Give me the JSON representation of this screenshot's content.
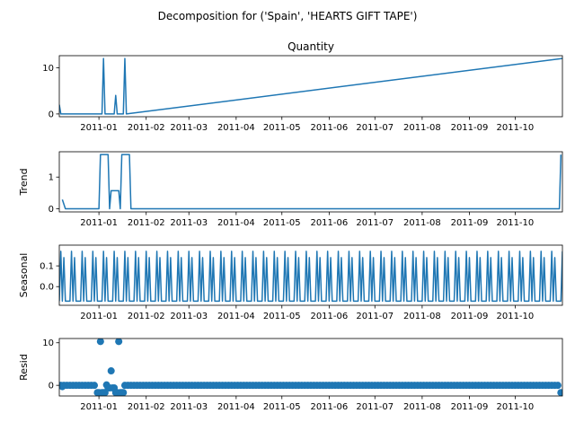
{
  "figure": {
    "suptitle": "Decomposition for ('Spain', 'HEARTS GIFT TAPE')"
  },
  "colors": {
    "line": "#1f77b4",
    "axis": "#000000",
    "background": "#ffffff"
  },
  "chart_data": [
    {
      "type": "line",
      "title": "Quantity",
      "ylabel": "",
      "ylim": [
        -0.6,
        12.6
      ],
      "yticks": [
        0,
        10
      ],
      "yticklabels": [
        "0",
        "10"
      ],
      "xlim": [
        "2010-12-06",
        "2011-11-01"
      ],
      "xticks": [
        "2011-01-01",
        "2011-02-01",
        "2011-03-01",
        "2011-04-01",
        "2011-05-01",
        "2011-06-01",
        "2011-07-01",
        "2011-08-01",
        "2011-09-01",
        "2011-10-01"
      ],
      "xticklabels": [
        "2011-01",
        "2011-02",
        "2011-03",
        "2011-04",
        "2011-05",
        "2011-06",
        "2011-07",
        "2011-08",
        "2011-09",
        "2011-10"
      ],
      "x": [
        "2010-12-06",
        "2010-12-07",
        "2011-01-03",
        "2011-01-04",
        "2011-01-05",
        "2011-01-11",
        "2011-01-12",
        "2011-01-13",
        "2011-01-17",
        "2011-01-18",
        "2011-01-19",
        "2011-11-01"
      ],
      "values": [
        2,
        0,
        0,
        12,
        0,
        0,
        4,
        0,
        0,
        12,
        0,
        12
      ]
    },
    {
      "type": "line",
      "title": "",
      "ylabel": "Trend",
      "ylim": [
        -0.1,
        1.8
      ],
      "yticks": [
        0,
        1
      ],
      "yticklabels": [
        "0",
        "1"
      ],
      "xlim": [
        "2010-12-06",
        "2011-11-01"
      ],
      "xticks": [
        "2011-01-01",
        "2011-02-01",
        "2011-03-01",
        "2011-04-01",
        "2011-05-01",
        "2011-06-01",
        "2011-07-01",
        "2011-08-01",
        "2011-09-01",
        "2011-10-01"
      ],
      "xticklabels": [
        "2011-01",
        "2011-02",
        "2011-03",
        "2011-04",
        "2011-05",
        "2011-06",
        "2011-07",
        "2011-08",
        "2011-09",
        "2011-10"
      ],
      "x": [
        "2010-12-08",
        "2010-12-10",
        "2011-01-01",
        "2011-01-02",
        "2011-01-07",
        "2011-01-08",
        "2011-01-09",
        "2011-01-14",
        "2011-01-15",
        "2011-01-16",
        "2011-01-21",
        "2011-01-22",
        "2011-10-30",
        "2011-10-31"
      ],
      "values": [
        0.29,
        0,
        0,
        1.71,
        1.71,
        0,
        0.57,
        0.57,
        0,
        1.71,
        1.71,
        0,
        0,
        1.71
      ]
    },
    {
      "type": "line",
      "title": "",
      "ylabel": "Seasonal",
      "ylim": [
        -0.09,
        0.2
      ],
      "yticks": [
        0.0,
        0.1
      ],
      "yticklabels": [
        "0.0",
        "0.1"
      ],
      "xlim": [
        "2010-12-06",
        "2011-11-01"
      ],
      "xticks": [
        "2011-01-01",
        "2011-02-01",
        "2011-03-01",
        "2011-04-01",
        "2011-05-01",
        "2011-06-01",
        "2011-07-01",
        "2011-08-01",
        "2011-09-01",
        "2011-10-01"
      ],
      "xticklabels": [
        "2011-01",
        "2011-02",
        "2011-03",
        "2011-04",
        "2011-05",
        "2011-06",
        "2011-07",
        "2011-08",
        "2011-09",
        "2011-10"
      ],
      "period_days": 7,
      "start": "2010-12-06",
      "end": "2011-11-01",
      "pattern": [
        -0.07,
        0.17,
        -0.07,
        0.14,
        -0.07,
        -0.07,
        -0.07
      ]
    },
    {
      "type": "scatter",
      "title": "",
      "ylabel": "Resid",
      "ylim": [
        -2.5,
        11
      ],
      "yticks": [
        0,
        10
      ],
      "yticklabels": [
        "0",
        "10"
      ],
      "xlim": [
        "2010-12-06",
        "2011-11-01"
      ],
      "xticks": [
        "2011-01-01",
        "2011-02-01",
        "2011-03-01",
        "2011-04-01",
        "2011-05-01",
        "2011-06-01",
        "2011-07-01",
        "2011-08-01",
        "2011-09-01",
        "2011-10-01"
      ],
      "xticklabels": [
        "2011-01",
        "2011-02",
        "2011-03",
        "2011-04",
        "2011-05",
        "2011-06",
        "2011-07",
        "2011-08",
        "2011-09",
        "2011-10"
      ],
      "baseline": 0,
      "baseline_start": "2010-12-07",
      "baseline_end": "2011-10-30",
      "points": [
        {
          "x": "2010-12-08",
          "y": -0.3
        },
        {
          "x": "2010-12-31",
          "y": -1.7
        },
        {
          "x": "2011-01-01",
          "y": -1.7
        },
        {
          "x": "2011-01-02",
          "y": 10.3
        },
        {
          "x": "2011-01-03",
          "y": -1.7
        },
        {
          "x": "2011-01-04",
          "y": -1.7
        },
        {
          "x": "2011-01-05",
          "y": -1.7
        },
        {
          "x": "2011-01-06",
          "y": 0.1
        },
        {
          "x": "2011-01-07",
          "y": -0.6
        },
        {
          "x": "2011-01-08",
          "y": -0.6
        },
        {
          "x": "2011-01-09",
          "y": 3.4
        },
        {
          "x": "2011-01-10",
          "y": -0.6
        },
        {
          "x": "2011-01-11",
          "y": -0.6
        },
        {
          "x": "2011-01-12",
          "y": -1.7
        },
        {
          "x": "2011-01-13",
          "y": -1.7
        },
        {
          "x": "2011-01-14",
          "y": 10.3
        },
        {
          "x": "2011-01-15",
          "y": -1.7
        },
        {
          "x": "2011-01-16",
          "y": -1.7
        },
        {
          "x": "2011-01-17",
          "y": -1.7
        },
        {
          "x": "2011-10-31",
          "y": -1.7
        }
      ]
    }
  ]
}
